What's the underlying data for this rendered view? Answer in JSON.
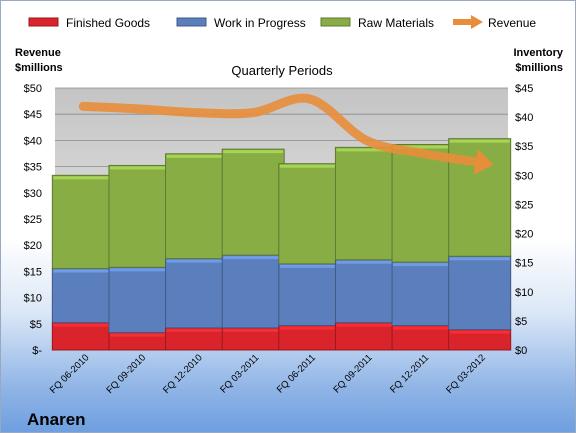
{
  "brand": "Anaren",
  "chart_data": {
    "type": "bar",
    "stacked": true,
    "subtitle": "Quarterly Periods",
    "categories": [
      "FQ 06-2010",
      "FQ 09-2010",
      "FQ 12-2010",
      "FQ 03-2011",
      "FQ 06-2011",
      "FQ 09-2011",
      "FQ 12-2011",
      "FQ 03-2012"
    ],
    "series": [
      {
        "name": "Finished Goods",
        "color": "#d9242b",
        "axis": "right",
        "values": [
          4.7,
          3.0,
          3.8,
          3.8,
          4.2,
          4.7,
          4.2,
          3.5
        ]
      },
      {
        "name": "Work in Progress",
        "color": "#5b7fbd",
        "axis": "right",
        "values": [
          9.3,
          11.2,
          11.9,
          12.5,
          10.6,
          10.8,
          10.9,
          12.6
        ]
      },
      {
        "name": "Raw Materials",
        "color": "#88ad45",
        "axis": "right",
        "values": [
          16.0,
          17.5,
          18.0,
          18.2,
          17.2,
          19.3,
          20.2,
          20.2
        ]
      }
    ],
    "line_series": {
      "name": "Revenue",
      "color": "#e88d3a",
      "axis": "left",
      "values": [
        46.5,
        46.0,
        45.3,
        45.3,
        47.9,
        40.0,
        37.5,
        35.8
      ]
    },
    "left_axis": {
      "title_lines": [
        "Revenue",
        "$millions"
      ],
      "min": 0,
      "max": 50,
      "step": 5,
      "tick_labels": [
        "$-",
        "$5",
        "$10",
        "$15",
        "$20",
        "$25",
        "$30",
        "$35",
        "$40",
        "$45",
        "$50"
      ]
    },
    "right_axis": {
      "title_lines": [
        "Inventory",
        "$millions"
      ],
      "min": 0,
      "max": 45,
      "step": 5,
      "tick_labels": [
        "$0",
        "$5",
        "$10",
        "$15",
        "$20",
        "$25",
        "$30",
        "$35",
        "$40",
        "$45"
      ]
    },
    "legend": [
      "Finished Goods",
      "Work in Progress",
      "Raw Materials",
      "Revenue"
    ],
    "legend_position": "top",
    "grid": true
  }
}
